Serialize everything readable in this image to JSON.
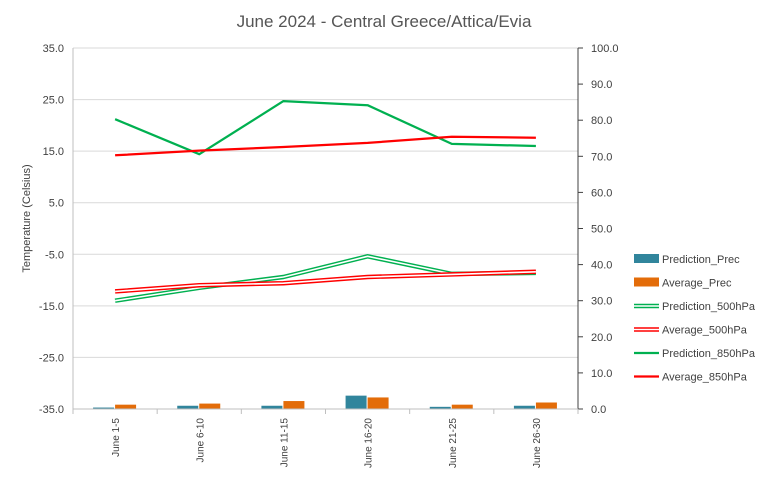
{
  "chart_data": {
    "type": "bar",
    "title": "June 2024 - Central Greece/Attica/Evia",
    "ylabel": "Temperature (Celsius)",
    "y2label": "",
    "ylim": [
      -35,
      35
    ],
    "y2lim": [
      0,
      100
    ],
    "yticks": [
      "35.0",
      "25.0",
      "15.0",
      "5.0",
      "-5.0",
      "-15.0",
      "-25.0",
      "-35.0"
    ],
    "y2ticks": [
      "100.0",
      "90.0",
      "80.0",
      "70.0",
      "60.0",
      "50.0",
      "40.0",
      "30.0",
      "20.0",
      "10.0",
      "0.0"
    ],
    "categories": [
      "June 1-5",
      "June 6-10",
      "June 11-15",
      "June 16-20",
      "June 21-25",
      "June 26-30"
    ],
    "grid": "horizontal",
    "legend_position": "right",
    "series": [
      {
        "name": "Prediction_Prec",
        "type": "bar",
        "axis": "y2",
        "color": "#31859C",
        "values": [
          0.4,
          0.9,
          0.9,
          3.7,
          0.6,
          0.9
        ]
      },
      {
        "name": "Average_Prec",
        "type": "bar",
        "axis": "y2",
        "color": "#E36C09",
        "values": [
          1.2,
          1.5,
          2.2,
          3.2,
          1.2,
          1.8
        ]
      },
      {
        "name": "Prediction_500hPa",
        "type": "line",
        "style": "double",
        "axis": "y",
        "color": "#00B050",
        "values": [
          -14.0,
          -11.5,
          -9.4,
          -5.4,
          -8.8,
          -8.6
        ]
      },
      {
        "name": "Average_500hPa",
        "type": "line",
        "style": "double",
        "axis": "y",
        "color": "#FF0000",
        "values": [
          -12.2,
          -11.0,
          -10.6,
          -9.4,
          -8.9,
          -8.4
        ]
      },
      {
        "name": "Prediction_850hPa",
        "type": "line",
        "style": "solid",
        "axis": "y",
        "color": "#00B050",
        "values": [
          21.2,
          14.4,
          24.7,
          23.9,
          16.4,
          16.0
        ]
      },
      {
        "name": "Average_850hPa",
        "type": "line",
        "style": "solid",
        "axis": "y",
        "color": "#FF0000",
        "values": [
          14.2,
          15.1,
          15.8,
          16.6,
          17.8,
          17.6
        ]
      }
    ]
  }
}
